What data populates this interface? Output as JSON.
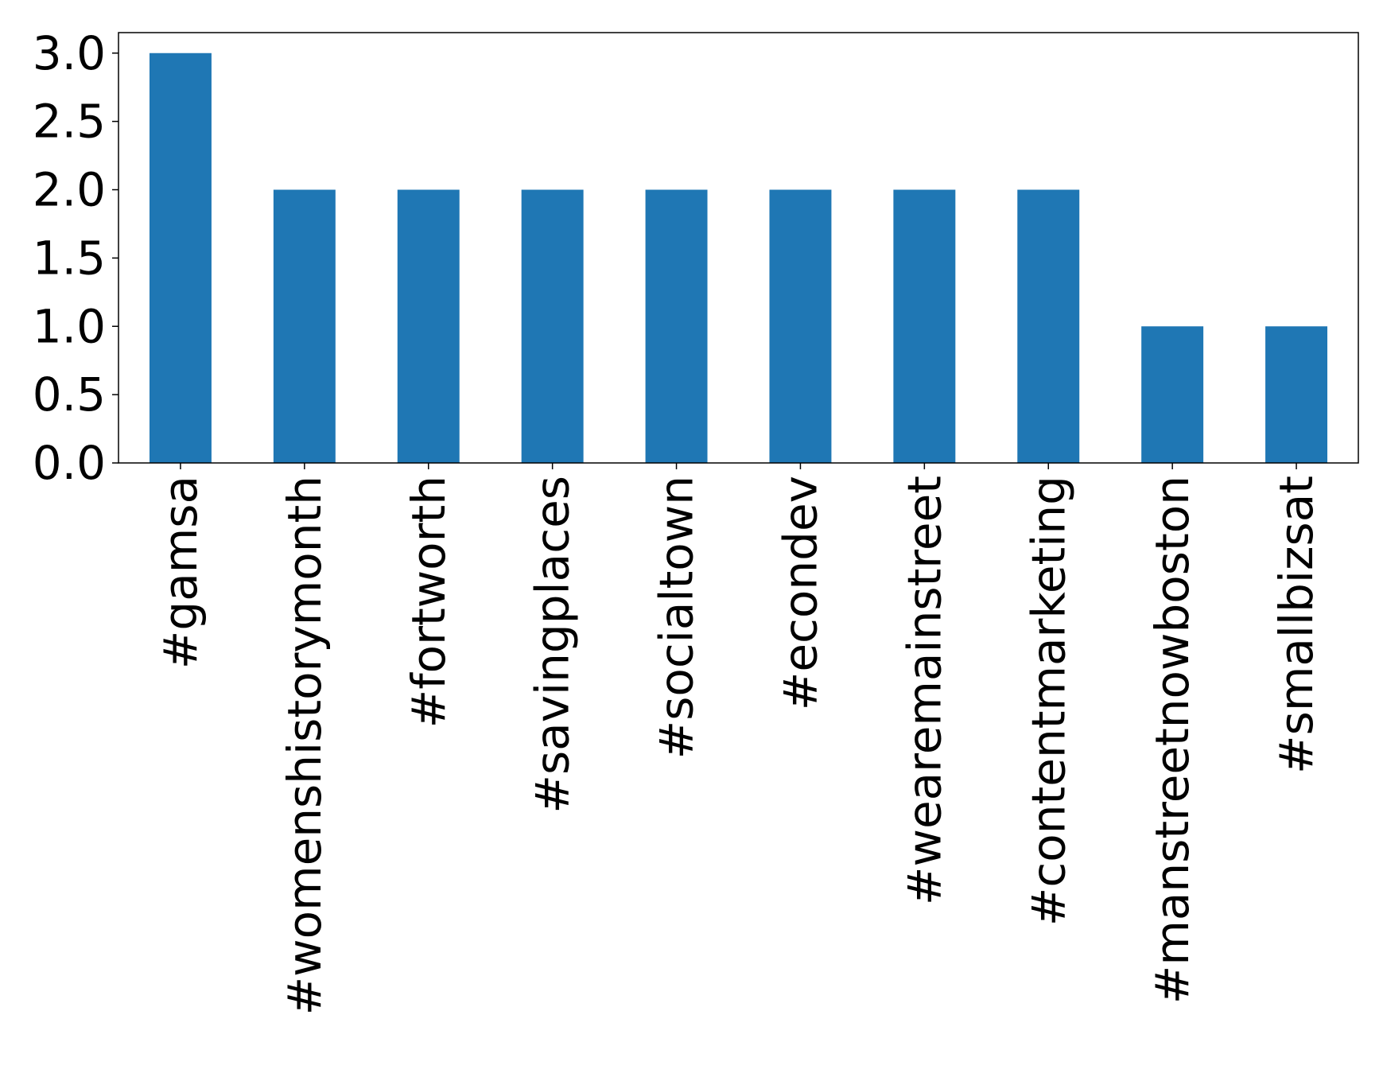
{
  "chart_data": {
    "type": "bar",
    "categories": [
      "#gamsa",
      "#womenshistorymonth",
      "#fortworth",
      "#savingplaces",
      "#socialtown",
      "#econdev",
      "#wearemainstreet",
      "#contentmarketing",
      "#manstreetnowboston",
      "#smallbizsat"
    ],
    "values": [
      3,
      2,
      2,
      2,
      2,
      2,
      2,
      2,
      1,
      1
    ],
    "color": "#1f77b4",
    "ylim": [
      0,
      3.15
    ],
    "yticks": [
      {
        "value": 0,
        "label": "0.0"
      },
      0.5,
      {
        "value": 1,
        "label": "1.0"
      },
      1.5,
      {
        "value": 2,
        "label": "2.0"
      },
      2.5,
      {
        "value": 3,
        "label": "3.0"
      }
    ],
    "grid": false
  }
}
